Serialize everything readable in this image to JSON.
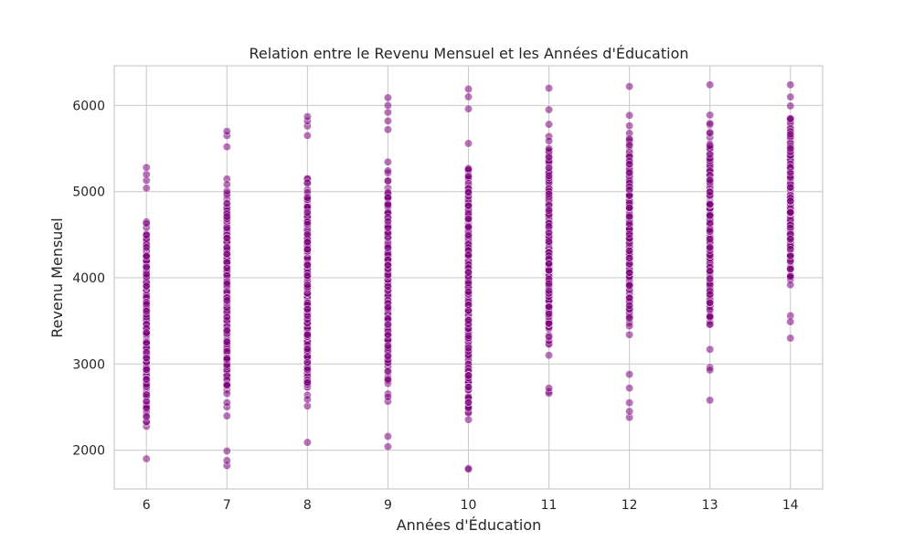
{
  "chart_data": {
    "type": "scatter",
    "title": "Relation entre le Revenu Mensuel et les Années d'Éducation",
    "xlabel": "Années d'Éducation",
    "ylabel": "Revenu Mensuel",
    "xlim": [
      5.6,
      14.4
    ],
    "ylim": [
      1550,
      6460
    ],
    "xticks": [
      6,
      7,
      8,
      9,
      10,
      11,
      12,
      13,
      14
    ],
    "yticks": [
      2000,
      3000,
      4000,
      5000,
      6000
    ],
    "grid": true,
    "legend": "none",
    "marker_color": "#800080",
    "marker_edge_color": "#ffffff",
    "marker_alpha": 0.55,
    "bands": [
      {
        "x": 6,
        "low": 1900,
        "high": 5040,
        "outliers": [
          5130,
          5200,
          5280
        ]
      },
      {
        "x": 7,
        "low": 1990,
        "high": 5520,
        "outliers": [
          1820,
          1880,
          5650,
          5700
        ]
      },
      {
        "x": 8,
        "low": 2090,
        "high": 5650,
        "outliers": [
          5760,
          5820,
          5870
        ]
      },
      {
        "x": 9,
        "low": 2160,
        "high": 5720,
        "outliers": [
          2040,
          5820,
          5920,
          6000,
          6090
        ]
      },
      {
        "x": 10,
        "low": 1790,
        "high": 5960,
        "outliers": [
          1780,
          6100,
          6190
        ]
      },
      {
        "x": 11,
        "low": 2680,
        "high": 6200,
        "outliers": [
          2660,
          2720
        ]
      },
      {
        "x": 12,
        "low": 2880,
        "high": 6220,
        "outliers": [
          2380,
          2450,
          2550,
          2720
        ]
      },
      {
        "x": 13,
        "low": 2960,
        "high": 6240,
        "outliers": [
          2580,
          2930
        ]
      },
      {
        "x": 14,
        "low": 3560,
        "high": 6240,
        "outliers": [
          3300,
          3490
        ]
      }
    ]
  }
}
